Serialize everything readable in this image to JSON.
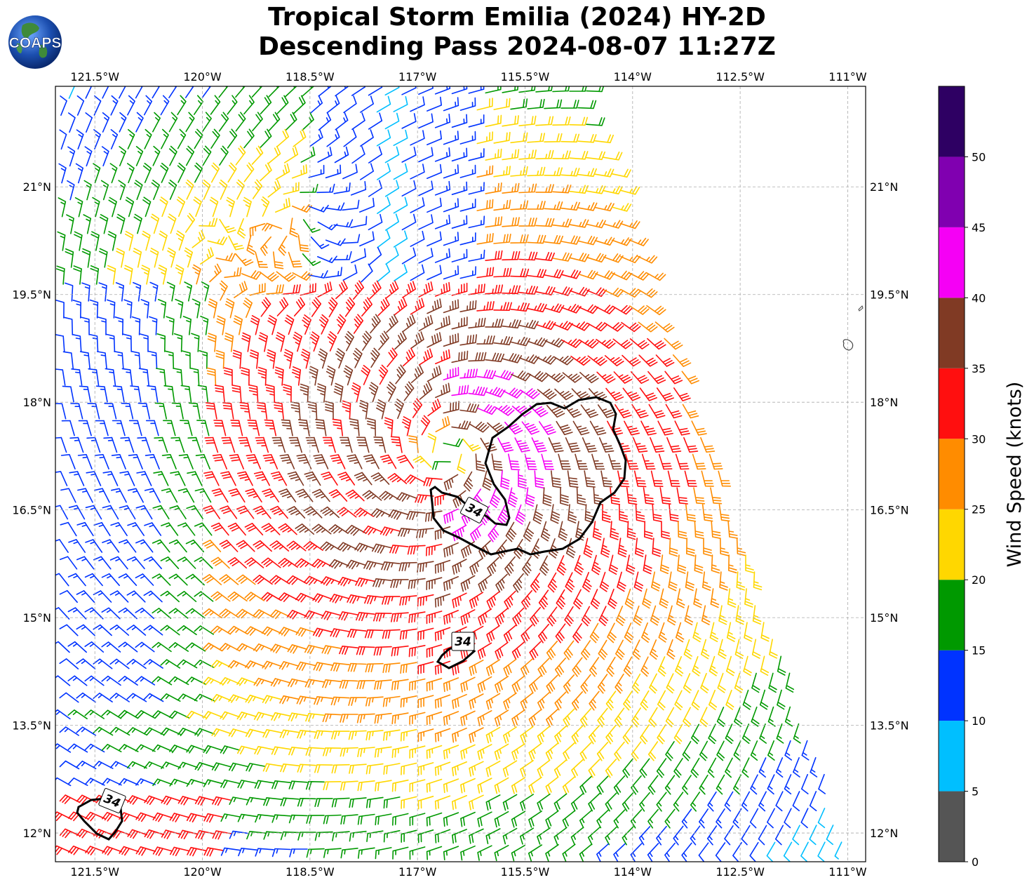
{
  "title": {
    "line1": "Tropical Storm Emilia (2024) HY-2D",
    "line2": "Descending Pass 2024-08-07 11:27Z"
  },
  "logo": {
    "text": "COAPS"
  },
  "map": {
    "lon_labels": [
      "121.5°W",
      "120°W",
      "118.5°W",
      "117°W",
      "115.5°W",
      "114°W",
      "112.5°W",
      "111°W"
    ],
    "lon_values": [
      -121.5,
      -120,
      -118.5,
      -117,
      -115.5,
      -114,
      -112.5,
      -111
    ],
    "lat_labels": [
      "12°N",
      "13.5°N",
      "15°N",
      "16.5°N",
      "18°N",
      "19.5°N",
      "21°N"
    ],
    "lat_values": [
      12,
      13.5,
      15,
      16.5,
      18,
      19.5,
      21
    ],
    "lon_range": [
      -122.05,
      -110.75
    ],
    "lat_range": [
      11.6,
      22.4
    ],
    "grid": true,
    "storm_center": {
      "lon": -116.6,
      "lat": 17.3
    },
    "contour_label": "34",
    "contour_value_knots": 34
  },
  "colorbar": {
    "label": "Wind Speed (knots)",
    "tick_labels": [
      "0",
      "5",
      "10",
      "15",
      "20",
      "25",
      "30",
      "35",
      "40",
      "45",
      "50"
    ],
    "bins": [
      {
        "min": 0,
        "max": 5,
        "color": "#555555"
      },
      {
        "min": 5,
        "max": 10,
        "color": "#00bfff"
      },
      {
        "min": 10,
        "max": 15,
        "color": "#0033ff"
      },
      {
        "min": 15,
        "max": 20,
        "color": "#009900"
      },
      {
        "min": 20,
        "max": 25,
        "color": "#ffd700"
      },
      {
        "min": 25,
        "max": 30,
        "color": "#ff8c00"
      },
      {
        "min": 30,
        "max": 35,
        "color": "#ff0f0f"
      },
      {
        "min": 35,
        "max": 40,
        "color": "#803a24"
      },
      {
        "min": 40,
        "max": 45,
        "color": "#f500f5"
      },
      {
        "min": 45,
        "max": 50,
        "color": "#8000b0"
      },
      {
        "min": 50,
        "max": 55,
        "color": "#2e0063"
      }
    ]
  }
}
